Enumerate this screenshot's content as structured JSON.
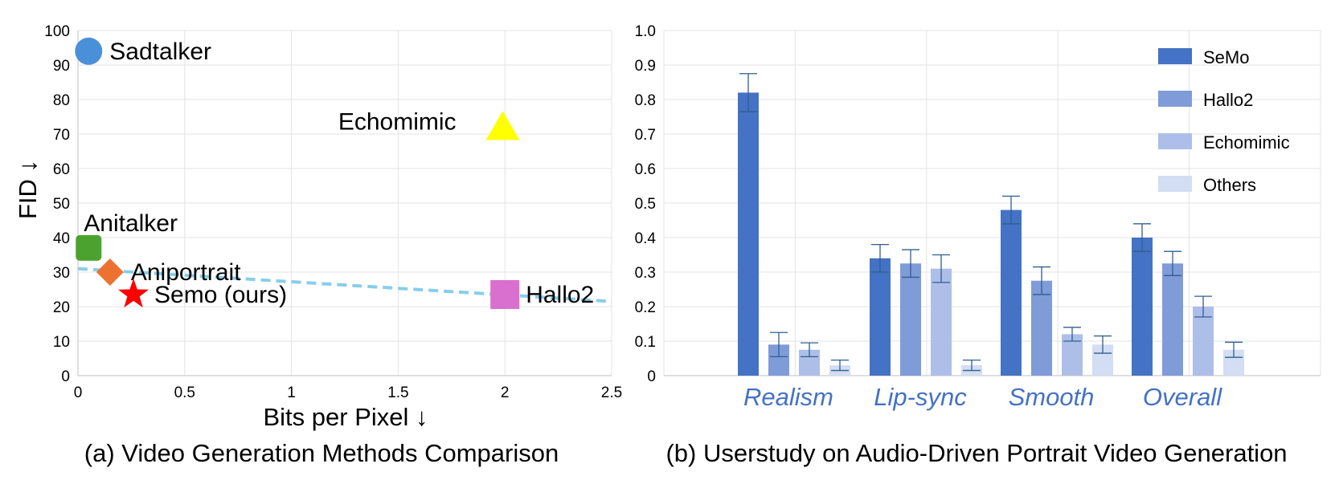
{
  "chart_data": [
    {
      "type": "scatter",
      "caption": "(a) Video Generation Methods Comparison",
      "xlabel": "Bits per Pixel ↓",
      "ylabel": "FID ↓",
      "xlim": [
        0,
        2.5
      ],
      "ylim": [
        0,
        100
      ],
      "xticks": [
        "0",
        "0.5",
        "1",
        "1.5",
        "2",
        "2.5"
      ],
      "xtick_values": [
        0,
        0.5,
        1,
        1.5,
        2,
        2.5
      ],
      "yticks": [
        "0",
        "10",
        "20",
        "30",
        "40",
        "50",
        "60",
        "70",
        "80",
        "90",
        "100"
      ],
      "ytick_values": [
        0,
        10,
        20,
        30,
        40,
        50,
        60,
        70,
        80,
        90,
        100
      ],
      "grid": true,
      "points": [
        {
          "name": "Sadtalker",
          "x": 0.05,
          "y": 94,
          "marker": "circle",
          "color": "#4a90d9",
          "label_side": "right"
        },
        {
          "name": "Echomimic",
          "x": 1.99,
          "y": 72,
          "marker": "triangle",
          "color": "#ffff00",
          "label_side": "left"
        },
        {
          "name": "Anitalker",
          "x": 0.05,
          "y": 37,
          "marker": "rounded-square",
          "color": "#4ca22f",
          "label_side": "above"
        },
        {
          "name": "Aniportrait",
          "x": 0.15,
          "y": 30,
          "marker": "diamond",
          "color": "#ed7232",
          "label_side": "right"
        },
        {
          "name": "Semo (ours)",
          "x": 0.26,
          "y": 23.5,
          "marker": "star",
          "color": "#ff0000",
          "label_side": "right"
        },
        {
          "name": "Hallo2",
          "x": 2.0,
          "y": 23.5,
          "marker": "square",
          "color": "#d96fcf",
          "label_side": "right"
        }
      ],
      "trend_line": {
        "style": "dashed",
        "color": "#87ceeb",
        "x": [
          0,
          2.5
        ],
        "y": [
          31,
          21.5
        ]
      }
    },
    {
      "type": "bar",
      "caption": "(b) Userstudy on Audio-Driven Portrait Video Generation",
      "categories": [
        "Realism",
        "Lip-sync",
        "Smooth",
        "Overall"
      ],
      "ylim": [
        0,
        1.0
      ],
      "yticks": [
        "0",
        "0.1",
        "0.2",
        "0.3",
        "0.4",
        "0.5",
        "0.6",
        "0.7",
        "0.8",
        "0.9",
        "1.0"
      ],
      "ytick_values": [
        0,
        0.1,
        0.2,
        0.3,
        0.4,
        0.5,
        0.6,
        0.7,
        0.8,
        0.9,
        1.0
      ],
      "grid": true,
      "legend_position": "top-right",
      "error_bars": true,
      "series": [
        {
          "name": "SeMo",
          "color": "#4472c4",
          "values": [
            0.82,
            0.34,
            0.48,
            0.4
          ],
          "errors": [
            0.055,
            0.04,
            0.04,
            0.04
          ]
        },
        {
          "name": "Hallo2",
          "color": "#7f9bd8",
          "values": [
            0.09,
            0.325,
            0.275,
            0.325
          ],
          "errors": [
            0.035,
            0.04,
            0.04,
            0.035
          ]
        },
        {
          "name": "Echomimic",
          "color": "#adbfe8",
          "values": [
            0.075,
            0.31,
            0.12,
            0.2
          ],
          "errors": [
            0.02,
            0.04,
            0.02,
            0.03
          ]
        },
        {
          "name": "Others",
          "color": "#d3ddf3",
          "values": [
            0.03,
            0.03,
            0.09,
            0.075
          ],
          "errors": [
            0.015,
            0.015,
            0.025,
            0.022
          ]
        }
      ]
    }
  ]
}
